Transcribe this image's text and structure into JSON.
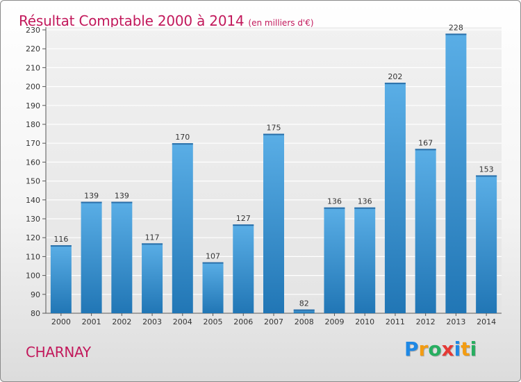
{
  "title": "Résultat Comptable 2000 à 2014",
  "subtitle": "(en milliers d'€)",
  "commune": "CHARNAY",
  "logo": {
    "text": "Proxiti",
    "letters": [
      "P",
      "r",
      "o",
      "x",
      "i",
      "t",
      "i"
    ],
    "colors": [
      "#1e88e5",
      "#f39c12",
      "#27ae60",
      "#e53935",
      "#1e88e5",
      "#f39c12",
      "#27ae60"
    ]
  },
  "colors": {
    "title": "#c2185b",
    "bar_top": "#5aaee6",
    "bar_bottom": "#2176b5",
    "grid": "#ffffff",
    "plot_bg": "#e9e9e9"
  },
  "chart_data": {
    "type": "bar",
    "title": "Résultat Comptable 2000 à 2014",
    "subtitle": "(en milliers d'€)",
    "categories": [
      "2000",
      "2001",
      "2002",
      "2003",
      "2004",
      "2005",
      "2006",
      "2007",
      "2008",
      "2009",
      "2010",
      "2011",
      "2012",
      "2013",
      "2014"
    ],
    "values": [
      116,
      139,
      139,
      117,
      170,
      107,
      127,
      175,
      82,
      136,
      136,
      202,
      167,
      228,
      153
    ],
    "ylim": [
      80,
      230
    ],
    "yticks": [
      80,
      90,
      100,
      110,
      120,
      130,
      140,
      150,
      160,
      170,
      180,
      190,
      200,
      210,
      220,
      230
    ],
    "grid": true,
    "data_labels": true
  }
}
